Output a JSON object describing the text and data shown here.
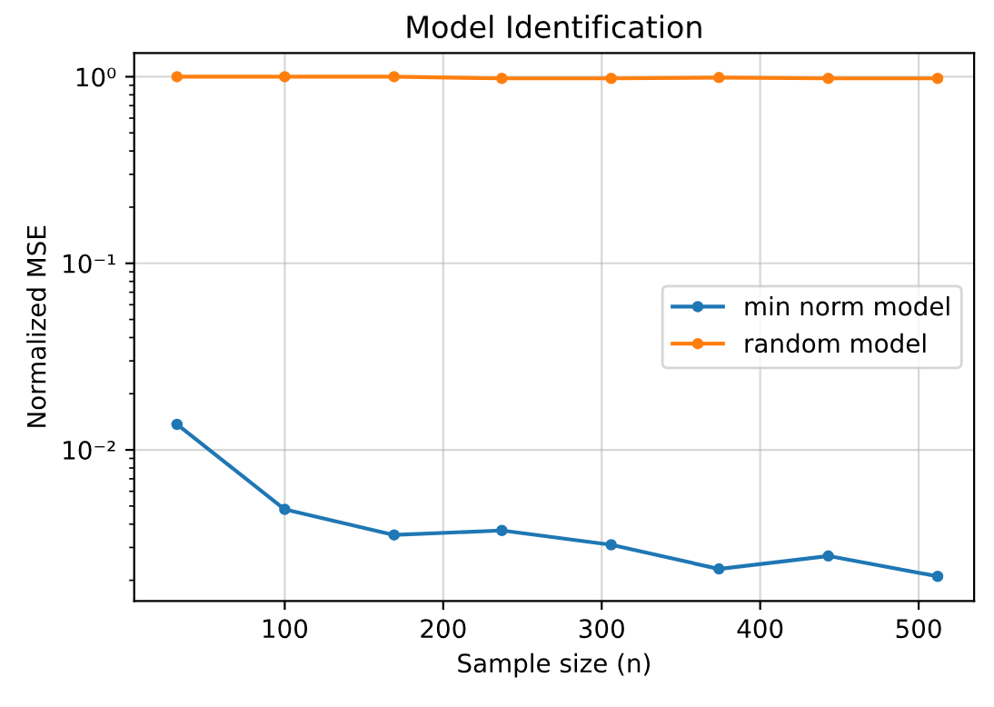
{
  "chart_data": {
    "type": "line",
    "title": "Model Identification",
    "xlabel": "Sample size (n)",
    "ylabel": "Normalized MSE",
    "x": [
      32,
      100,
      169,
      237,
      306,
      374,
      443,
      512
    ],
    "series": [
      {
        "name": "min norm model",
        "color": "#1f77b4",
        "values": [
          0.0137,
          0.0048,
          0.0035,
          0.0037,
          0.0031,
          0.0023,
          0.0027,
          0.0021
        ]
      },
      {
        "name": "random model",
        "color": "#ff7f0e",
        "values": [
          1.0,
          1.0,
          1.0,
          0.98,
          0.98,
          0.99,
          0.98,
          0.98
        ]
      }
    ],
    "log": "y",
    "xlim": [
      5,
      535
    ],
    "ylim": [
      0.00155,
      1.34
    ],
    "xticks": [
      100,
      200,
      300,
      400,
      500
    ],
    "yticks": [
      {
        "value": 1,
        "label": "10⁰"
      },
      {
        "value": 0.1,
        "label": "10⁻¹"
      },
      {
        "value": 0.01,
        "label": "10⁻²"
      }
    ],
    "grid": true,
    "legend": "right",
    "marker": "circle",
    "line_style": "solid"
  }
}
